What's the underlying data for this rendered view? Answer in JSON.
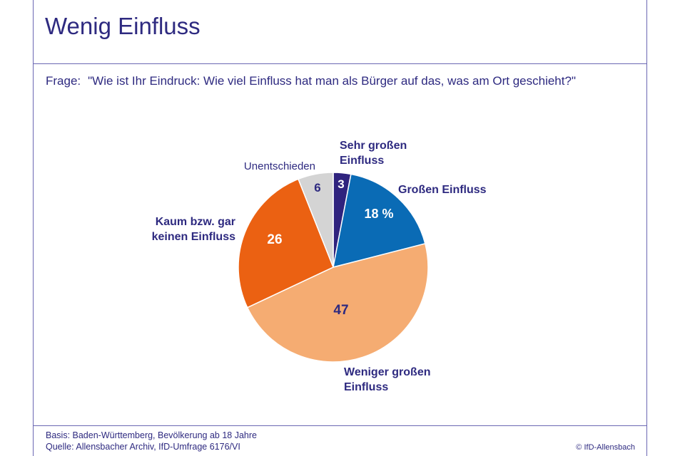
{
  "title": "Wenig Einfluss",
  "question": {
    "label": "Frage:",
    "text": "\"Wie ist Ihr Eindruck: Wie viel Einfluss hat man als Bürger auf das, was am Ort geschieht?\""
  },
  "chart_data": {
    "type": "pie",
    "start": "12 o'clock, clockwise",
    "slices": [
      {
        "key": "sehr_gross",
        "value": 3,
        "value_label": "3",
        "label_lines": [
          "Sehr großen",
          "Einfluss"
        ],
        "color": "#2f237e",
        "value_color": "#ffffff"
      },
      {
        "key": "gross",
        "value": 18,
        "value_label": "18 %",
        "label_lines": [
          "Großen Einfluss"
        ],
        "color": "#0a6bb5",
        "value_color": "#ffffff"
      },
      {
        "key": "weniger_gross",
        "value": 47,
        "value_label": "47",
        "label_lines": [
          "Weniger großen",
          "Einfluss"
        ],
        "color": "#f5ac72",
        "value_color": "#2e2a80"
      },
      {
        "key": "kaum",
        "value": 26,
        "value_label": "26",
        "label_lines": [
          "Kaum bzw. gar",
          "keinen Einfluss"
        ],
        "color": "#eb6112",
        "value_color": "#ffffff"
      },
      {
        "key": "unentschieden",
        "value": 6,
        "value_label": "6",
        "label_lines": [
          "Unentschieden"
        ],
        "color": "#d4d4d4",
        "value_color": "#2e2a80"
      }
    ]
  },
  "footer": {
    "basis": "Basis: Baden-Württemberg, Bevölkerung ab 18 Jahre",
    "source": "Quelle: Allensbacher Archiv, IfD-Umfrage 6176/VI",
    "copyright": "© IfD-Allensbach"
  }
}
